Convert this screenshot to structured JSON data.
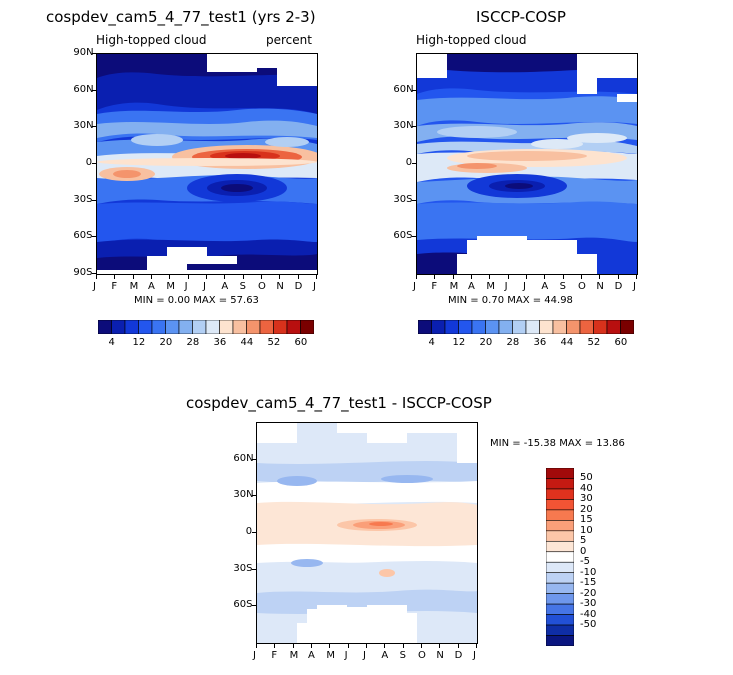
{
  "chart_data": [
    {
      "type": "heatmap",
      "title": "cospdev_cam5_4_77_test1 (yrs 2-3)",
      "subtitle_left": "High-topped cloud",
      "subtitle_right": "percent",
      "xlabels": [
        "J",
        "F",
        "M",
        "A",
        "M",
        "J",
        "J",
        "A",
        "S",
        "O",
        "N",
        "D",
        "J"
      ],
      "ylabels": [
        "90N",
        "60N",
        "30N",
        "0",
        "30S",
        "60S",
        "90S"
      ],
      "stats": "MIN =    0.00 MAX =   57.63",
      "colorbar_ticks": [
        "4",
        "12",
        "20",
        "28",
        "36",
        "44",
        "52",
        "60"
      ],
      "colorbar_levels": [
        4,
        8,
        12,
        16,
        20,
        24,
        28,
        32,
        36,
        40,
        44,
        48,
        52,
        56,
        60
      ],
      "colors": [
        "#0c0c7a",
        "#0a1fb0",
        "#1238d8",
        "#2356ee",
        "#3a74f2",
        "#5b93f2",
        "#83b0f0",
        "#b2cff4",
        "#dde9f7",
        "#fde3cf",
        "#f8c0a0",
        "#f4946c",
        "#ec6440",
        "#d8321c",
        "#b80f0f",
        "#7a0000"
      ]
    },
    {
      "type": "heatmap",
      "title": "ISCCP-COSP",
      "subtitle_left": "High-topped cloud",
      "xlabels": [
        "J",
        "F",
        "M",
        "A",
        "M",
        "J",
        "J",
        "A",
        "S",
        "O",
        "N",
        "D",
        "J"
      ],
      "ylabels": [
        "60N",
        "30N",
        "0",
        "30S",
        "60S"
      ],
      "stats": "MIN =    0.70 MAX =   44.98",
      "colorbar_ticks": [
        "4",
        "12",
        "20",
        "28",
        "36",
        "44",
        "52",
        "60"
      ]
    },
    {
      "type": "heatmap",
      "title": "cospdev_cam5_4_77_test1 - ISCCP-COSP",
      "xlabels": [
        "J",
        "F",
        "M",
        "A",
        "M",
        "J",
        "J",
        "A",
        "S",
        "O",
        "N",
        "D",
        "J"
      ],
      "ylabels": [
        "60N",
        "30N",
        "0",
        "30S",
        "60S"
      ],
      "stats": "MIN = -15.38 MAX =   13.86",
      "colorbar_ticks": [
        "50",
        "40",
        "30",
        "20",
        "15",
        "10",
        "5",
        "0",
        "-5",
        "-10",
        "-15",
        "-20",
        "-30",
        "-40",
        "-50"
      ],
      "colors": [
        "#a20a0a",
        "#c51a12",
        "#e0321e",
        "#f25434",
        "#f7794f",
        "#fa9f79",
        "#fcc6a8",
        "#fde6d6",
        "#ffffff",
        "#dde8f8",
        "#bdd2f4",
        "#97b7f0",
        "#6e97ec",
        "#4675e6",
        "#2250d6",
        "#0f2ea6",
        "#0a1680"
      ]
    }
  ]
}
